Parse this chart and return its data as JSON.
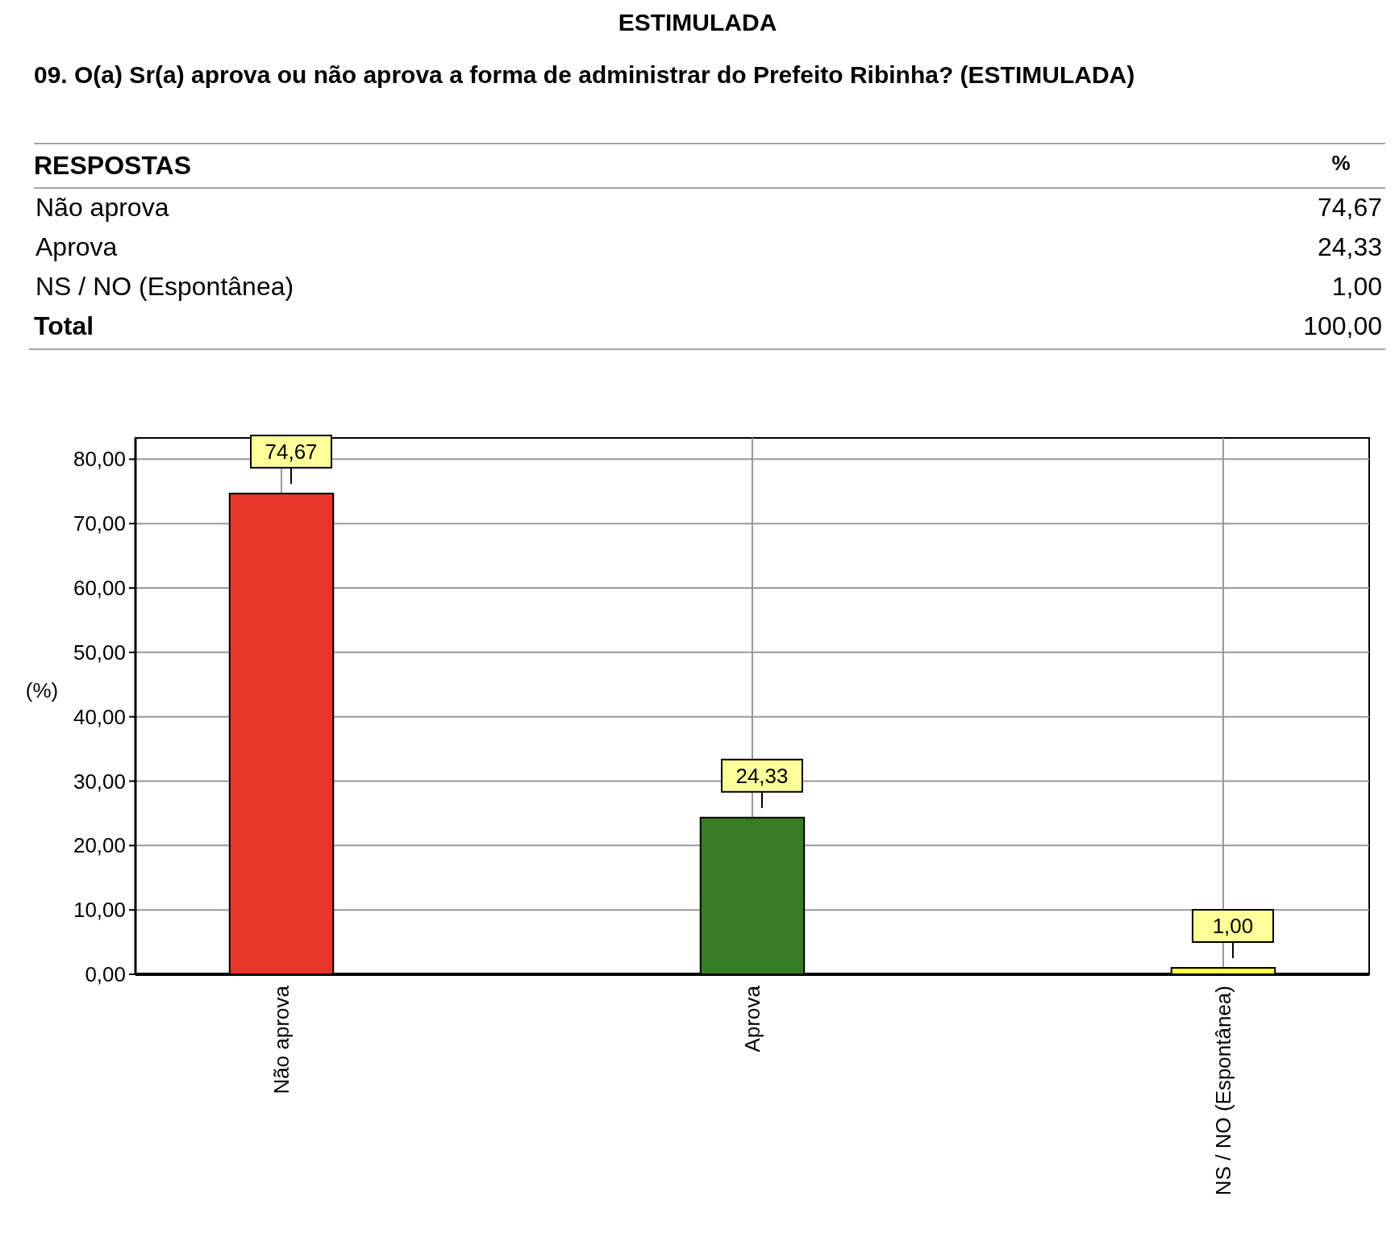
{
  "chart_data": {
    "type": "bar",
    "title": "ESTIMULADA",
    "subtitle": "09. O(a) Sr(a) aprova ou não aprova a forma de administrar do Prefeito Ribinha? (ESTIMULADA)",
    "ylabel": "(%)",
    "categories": [
      "Não aprova",
      "Aprova",
      "NS / NO (Espontânea)"
    ],
    "values": [
      74.67,
      24.33,
      1.0
    ],
    "colors": [
      "#e8352a",
      "#367d23",
      "#ffff4d"
    ],
    "value_labels": [
      "74,67",
      "24,33",
      "1,00"
    ],
    "annotations": [
      "RESPOSTAS",
      "%",
      "Total",
      "100,00"
    ],
    "ylim": [
      0,
      83.3
    ],
    "yticks": [
      {
        "value": 0,
        "label": "0,00"
      },
      {
        "value": 10,
        "label": "10,00"
      },
      {
        "value": 20,
        "label": "20,00"
      },
      {
        "value": 30,
        "label": "30,00"
      },
      {
        "value": 40,
        "label": "40,00"
      },
      {
        "value": 50,
        "label": "50,00"
      },
      {
        "value": 60,
        "label": "60,00"
      },
      {
        "value": 70,
        "label": "70,00"
      },
      {
        "value": 80,
        "label": "80,00"
      }
    ],
    "grid": true
  }
}
